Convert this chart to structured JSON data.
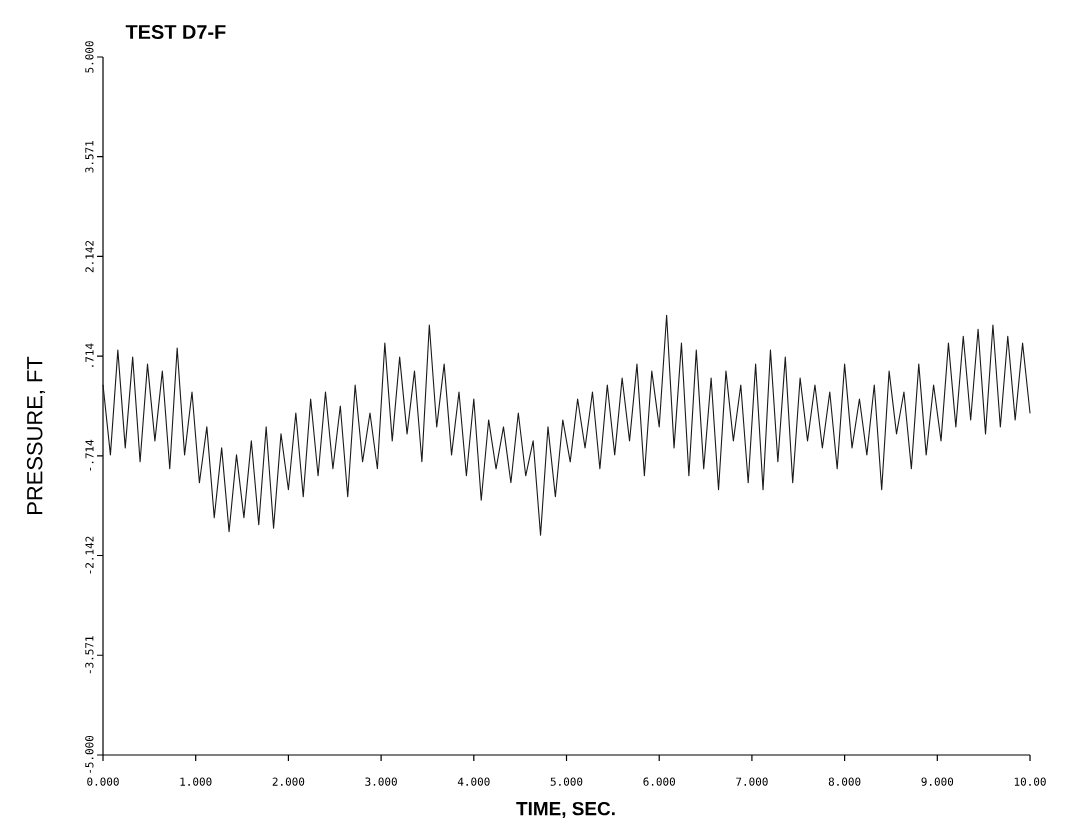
{
  "chart_data": {
    "type": "line",
    "title": "TEST D7-F",
    "xlabel": "TIME, SEC.",
    "ylabel": "PRESSURE, FT",
    "xlim": [
      0,
      10
    ],
    "ylim": [
      -5,
      5
    ],
    "xticks": [
      {
        "value": 0,
        "label": "0.000"
      },
      {
        "value": 1,
        "label": "1.000"
      },
      {
        "value": 2,
        "label": "2.000"
      },
      {
        "value": 3,
        "label": "3.000"
      },
      {
        "value": 4,
        "label": "4.000"
      },
      {
        "value": 5,
        "label": "5.000"
      },
      {
        "value": 6,
        "label": "6.000"
      },
      {
        "value": 7,
        "label": "7.000"
      },
      {
        "value": 8,
        "label": "8.000"
      },
      {
        "value": 9,
        "label": "9.000"
      },
      {
        "value": 10,
        "label": "10.00"
      }
    ],
    "yticks": [
      {
        "value": -5,
        "label": "-5.000"
      },
      {
        "value": -3.571,
        "label": "-3.571"
      },
      {
        "value": -2.142,
        "label": "-2.142"
      },
      {
        "value": -0.714,
        "label": "-.714"
      },
      {
        "value": 0.714,
        "label": ".714"
      },
      {
        "value": 2.142,
        "label": "2.142"
      },
      {
        "value": 3.571,
        "label": "3.571"
      },
      {
        "value": 5,
        "label": "5.000"
      }
    ],
    "grid": false,
    "marker": "none",
    "line_style": "solid",
    "series": [
      {
        "color": "#1a1a1a",
        "x": [
          0,
          0.08,
          0.16,
          0.24,
          0.32,
          0.4,
          0.48,
          0.56,
          0.64,
          0.72,
          0.8,
          0.88,
          0.96,
          1.04,
          1.12,
          1.2,
          1.28,
          1.36,
          1.44,
          1.52,
          1.6,
          1.68,
          1.76,
          1.84,
          1.92,
          2.0,
          2.08,
          2.16,
          2.24,
          2.32,
          2.4,
          2.48,
          2.56,
          2.64,
          2.72,
          2.8,
          2.88,
          2.96,
          3.04,
          3.12,
          3.2,
          3.28,
          3.36,
          3.44,
          3.52,
          3.6,
          3.68,
          3.76,
          3.84,
          3.92,
          4.0,
          4.08,
          4.16,
          4.24,
          4.32,
          4.4,
          4.48,
          4.56,
          4.64,
          4.72,
          4.8,
          4.88,
          4.96,
          5.04,
          5.12,
          5.2,
          5.28,
          5.36,
          5.44,
          5.52,
          5.6,
          5.68,
          5.76,
          5.84,
          5.92,
          6.0,
          6.08,
          6.16,
          6.24,
          6.32,
          6.4,
          6.48,
          6.56,
          6.64,
          6.72,
          6.8,
          6.88,
          6.96,
          7.04,
          7.12,
          7.2,
          7.28,
          7.36,
          7.44,
          7.52,
          7.6,
          7.68,
          7.76,
          7.84,
          7.92,
          8.0,
          8.08,
          8.16,
          8.24,
          8.32,
          8.4,
          8.48,
          8.56,
          8.64,
          8.72,
          8.8,
          8.88,
          8.96,
          9.04,
          9.12,
          9.2,
          9.28,
          9.36,
          9.44,
          9.52,
          9.6,
          9.68,
          9.76,
          9.84,
          9.92,
          10.0
        ],
        "values": [
          0.3,
          -0.7,
          0.8,
          -0.6,
          0.7,
          -0.8,
          0.6,
          -0.5,
          0.5,
          -0.9,
          0.83,
          -0.7,
          0.2,
          -1.1,
          -0.3,
          -1.6,
          -0.6,
          -1.8,
          -0.7,
          -1.6,
          -0.5,
          -1.7,
          -0.3,
          -1.75,
          -0.4,
          -1.2,
          -0.1,
          -1.3,
          0.1,
          -1.0,
          0.2,
          -0.9,
          0.0,
          -1.3,
          0.3,
          -0.8,
          -0.1,
          -0.9,
          0.9,
          -0.5,
          0.7,
          -0.4,
          0.5,
          -0.8,
          1.16,
          -0.3,
          0.6,
          -0.7,
          0.2,
          -1.0,
          0.1,
          -1.35,
          -0.2,
          -0.9,
          -0.3,
          -1.1,
          -0.1,
          -1.0,
          -0.5,
          -1.85,
          -0.3,
          -1.3,
          -0.2,
          -0.8,
          0.1,
          -0.6,
          0.2,
          -0.9,
          0.3,
          -0.7,
          0.4,
          -0.5,
          0.6,
          -1.0,
          0.5,
          -0.3,
          1.3,
          -0.6,
          0.9,
          -1.0,
          0.8,
          -0.9,
          0.4,
          -1.2,
          0.5,
          -0.5,
          0.3,
          -1.1,
          0.6,
          -1.2,
          0.8,
          -0.8,
          0.7,
          -1.1,
          0.4,
          -0.5,
          0.3,
          -0.6,
          0.2,
          -0.9,
          0.6,
          -0.6,
          0.1,
          -0.7,
          0.3,
          -1.2,
          0.5,
          -0.4,
          0.2,
          -0.9,
          0.6,
          -0.7,
          0.3,
          -0.5,
          0.9,
          -0.3,
          1.0,
          -0.2,
          1.1,
          -0.4,
          1.16,
          -0.3,
          1.0,
          -0.2,
          0.9,
          -0.1
        ]
      }
    ]
  }
}
